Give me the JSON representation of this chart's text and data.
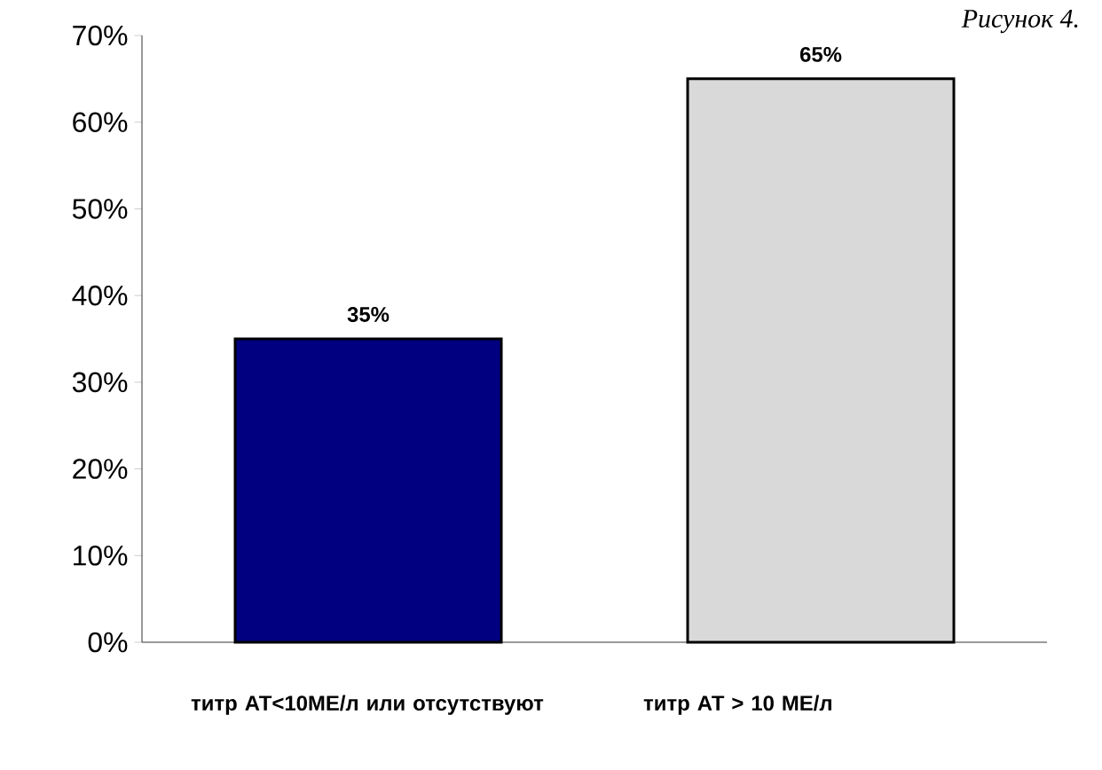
{
  "chart_data": {
    "type": "bar",
    "title": "Рисунок 4.",
    "categories": [
      "титр АТ<10МЕ/л или отсутствуют",
      "титр АТ > 10 МЕ/л"
    ],
    "values": [
      35,
      65
    ],
    "colors": [
      "#000080",
      "#d9d9d9"
    ],
    "value_labels": [
      "35%",
      "65%"
    ],
    "ylim": [
      0,
      70
    ],
    "yticks": [
      {
        "value": 0,
        "label": "0%"
      },
      {
        "value": 10,
        "label": "10%"
      },
      {
        "value": 20,
        "label": "20%"
      },
      {
        "value": 30,
        "label": "30%"
      },
      {
        "value": 40,
        "label": "40%"
      },
      {
        "value": 50,
        "label": "50%"
      },
      {
        "value": 60,
        "label": "60%"
      },
      {
        "value": 70,
        "label": "70%"
      }
    ]
  }
}
